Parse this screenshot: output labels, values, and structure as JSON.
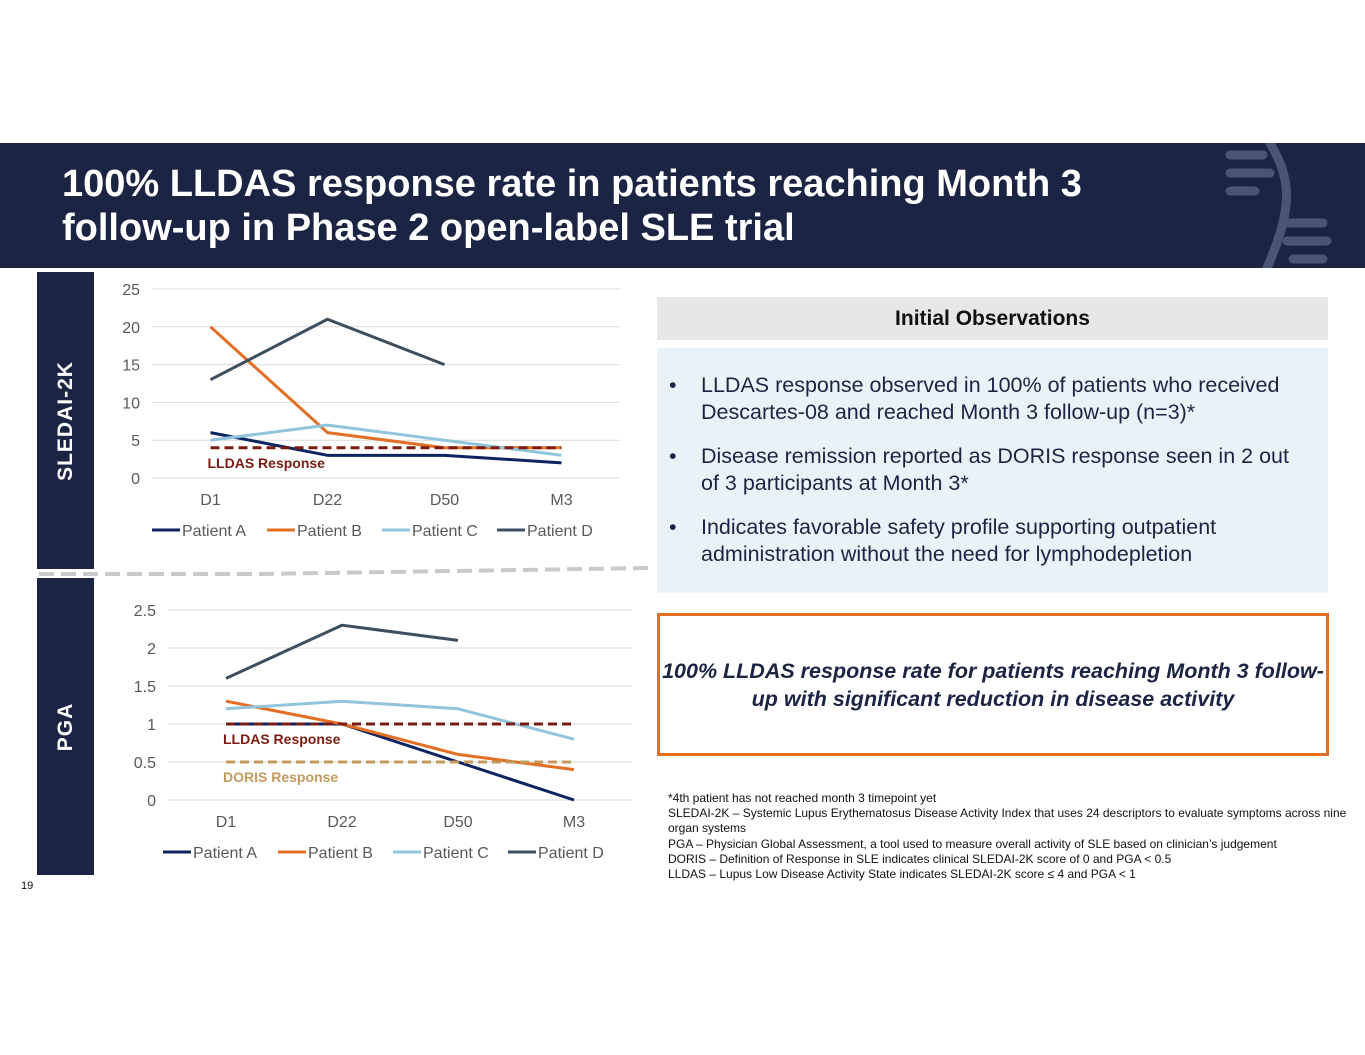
{
  "slide": {
    "title": "100% LLDAS response rate in patients reaching Month 3 follow-up in Phase 2 open-label SLE trial",
    "page_number": "19",
    "colors": {
      "navy": "#1c2444",
      "orange": "#e36f25",
      "light_blue_panel": "#eaf2f8",
      "grey_header": "#e7e7e7"
    }
  },
  "sections": {
    "top_label": "SLEDAI-2K",
    "bottom_label": "PGA"
  },
  "observations": {
    "heading": "Initial Observations",
    "bullet_symbol": "•",
    "bullets": [
      "LLDAS response observed in 100% of patients who received Descartes-08 and reached Month 3 follow-up (n=3)*",
      "Disease remission reported as DORIS response seen in 2 out of 3 participants at Month 3*",
      "Indicates favorable safety profile supporting outpatient administration without the need for lymphodepletion"
    ]
  },
  "callout": {
    "text": "100% LLDAS response rate for patients reaching Month 3 follow-up with significant reduction in disease activity"
  },
  "footnotes": [
    "*4th patient has not reached month 3 timepoint yet",
    "SLEDAI-2K – Systemic Lupus Erythematosus Disease Activity Index that uses 24 descriptors to evaluate symptoms across nine organ systems",
    "PGA – Physician Global Assessment, a tool used to measure overall activity of SLE based on clinician’s judgement",
    "DORIS – Definition of Response in SLE indicates clinical SLEDAI-2K score of 0 and PGA < 0.5",
    "LLDAS – Lupus Low Disease Activity State indicates SLEDAI-2K score ≤ 4 and PGA < 1"
  ],
  "chart_data": [
    {
      "type": "line",
      "categories": [
        "D1",
        "D22",
        "D50",
        "M3"
      ],
      "ylim": [
        0,
        25
      ],
      "yticks": [
        0,
        5,
        10,
        15,
        20,
        25
      ],
      "ytick_labels": [
        "0",
        "5",
        "10",
        "15",
        "20",
        "25"
      ],
      "grid": true,
      "legend_position": "bottom",
      "series": [
        {
          "name": "Patient A",
          "color": "#0e2461",
          "values": [
            6,
            3,
            3,
            2
          ]
        },
        {
          "name": "Patient B",
          "color": "#e36f25",
          "values": [
            20,
            6,
            4,
            4
          ]
        },
        {
          "name": "Patient C",
          "color": "#91c4dd",
          "values": [
            5,
            7,
            5,
            3
          ]
        },
        {
          "name": "Patient D",
          "color": "#3d4e5f",
          "values": [
            13,
            21,
            15,
            null
          ]
        }
      ],
      "reference_lines": [
        {
          "label": "LLDAS Response",
          "value": 4,
          "color": "#7a1c12"
        }
      ]
    },
    {
      "type": "line",
      "categories": [
        "D1",
        "D22",
        "D50",
        "M3"
      ],
      "ylim": [
        0,
        2.5
      ],
      "yticks": [
        0,
        0.5,
        1,
        1.5,
        2,
        2.5
      ],
      "ytick_labels": [
        "0",
        "0.5",
        "1",
        "1.5",
        "2",
        "2.5"
      ],
      "grid": true,
      "legend_position": "bottom",
      "series": [
        {
          "name": "Patient A",
          "color": "#0e2461",
          "values": [
            1,
            1,
            0.5,
            0
          ]
        },
        {
          "name": "Patient B",
          "color": "#e36f25",
          "values": [
            1.3,
            1,
            0.6,
            0.4
          ]
        },
        {
          "name": "Patient C",
          "color": "#91c4dd",
          "values": [
            1.2,
            1.3,
            1.2,
            0.8
          ]
        },
        {
          "name": "Patient D",
          "color": "#3d4e5f",
          "values": [
            1.6,
            2.3,
            2.1,
            null
          ]
        }
      ],
      "reference_lines": [
        {
          "label": "LLDAS Response",
          "value": 1,
          "color": "#7a1c12"
        },
        {
          "label": "DORIS Response",
          "value": 0.5,
          "color": "#c49a5c"
        }
      ]
    }
  ]
}
